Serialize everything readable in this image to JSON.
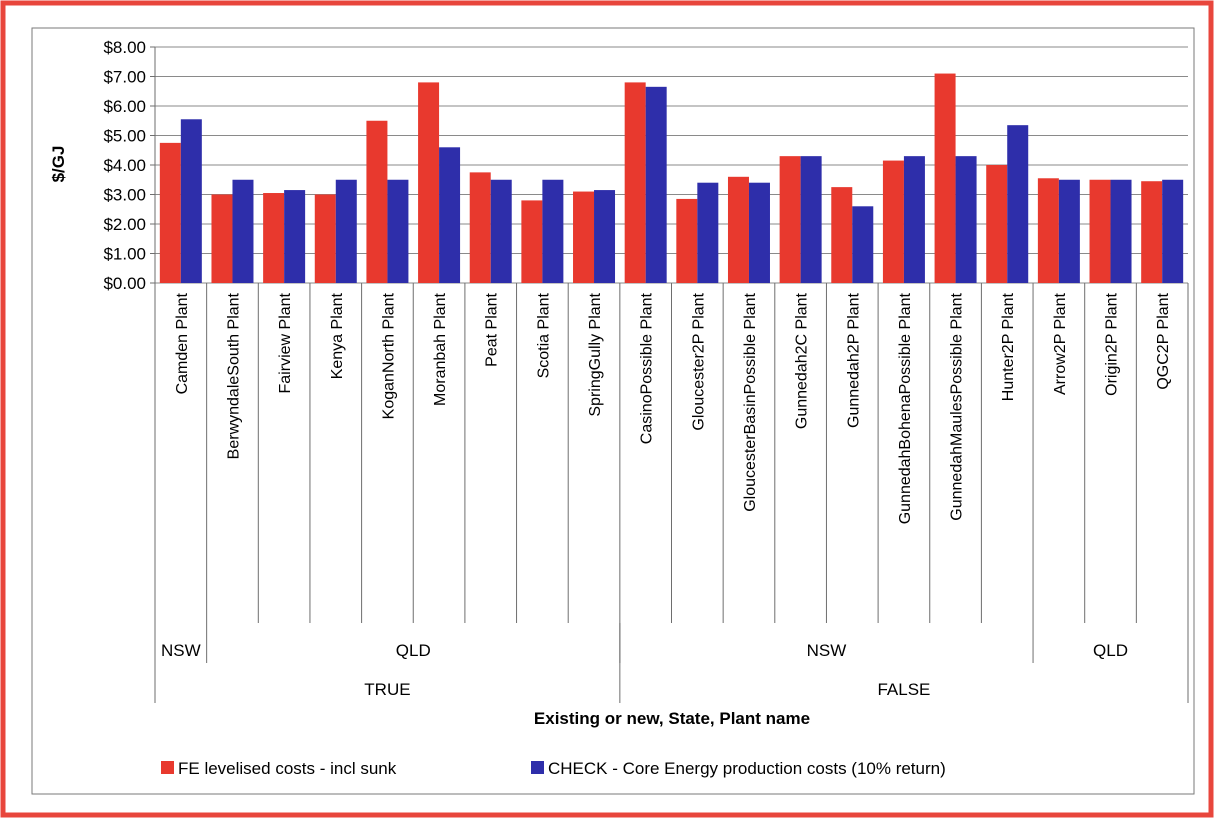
{
  "colors": {
    "frame": "#e8463c",
    "series1": "#e8392e",
    "series2": "#2e2eaa",
    "grid": "#8a8a8a",
    "axis": "#6e6e6e"
  },
  "chart_data": {
    "type": "bar",
    "title": "",
    "ylabel": "$/GJ",
    "xlabel": "Existing or new, State, Plant name",
    "ylim": [
      0,
      8
    ],
    "yticks": [
      0,
      1,
      2,
      3,
      4,
      5,
      6,
      7,
      8
    ],
    "ytick_labels": [
      "$0.00",
      "$1.00",
      "$2.00",
      "$3.00",
      "$4.00",
      "$5.00",
      "$6.00",
      "$7.00",
      "$8.00"
    ],
    "grid": true,
    "legend_position": "bottom",
    "categories": [
      "Camden Plant",
      "BerwyndaleSouth Plant",
      "Fairview Plant",
      "Kenya Plant",
      "KoganNorth Plant",
      "Moranbah Plant",
      "Peat Plant",
      "Scotia Plant",
      "SpringGully Plant",
      "CasinoPossible Plant",
      "Gloucester2P Plant",
      "GloucesterBasinPossible Plant",
      "Gunnedah2C Plant",
      "Gunnedah2P Plant",
      "GunnedahBohenaPossible Plant",
      "GunnedahMaulesPossible Plant",
      "Hunter2P Plant",
      "Arrow2P Plant",
      "Origin2P Plant",
      "QGC2P Plant"
    ],
    "series": [
      {
        "name": "FE levelised costs - incl sunk",
        "values": [
          4.75,
          3.0,
          3.05,
          3.0,
          5.5,
          6.8,
          3.75,
          2.8,
          3.1,
          6.8,
          2.85,
          3.6,
          4.3,
          3.25,
          4.15,
          7.1,
          4.0,
          3.55,
          3.5,
          3.45
        ]
      },
      {
        "name": "CHECK - Core Energy production costs (10% return)",
        "values": [
          5.55,
          3.5,
          3.15,
          3.5,
          3.5,
          4.6,
          3.5,
          3.5,
          3.15,
          6.65,
          3.4,
          3.4,
          4.3,
          2.6,
          4.3,
          4.3,
          5.35,
          3.5,
          3.5,
          3.5
        ]
      }
    ],
    "group_levels": [
      [
        {
          "label": "NSW",
          "start": 0,
          "end": 0
        },
        {
          "label": "QLD",
          "start": 1,
          "end": 8
        },
        {
          "label": "NSW",
          "start": 9,
          "end": 16
        },
        {
          "label": "QLD",
          "start": 17,
          "end": 19
        }
      ],
      [
        {
          "label": "TRUE",
          "start": 0,
          "end": 8
        },
        {
          "label": "FALSE",
          "start": 9,
          "end": 19
        }
      ]
    ]
  }
}
